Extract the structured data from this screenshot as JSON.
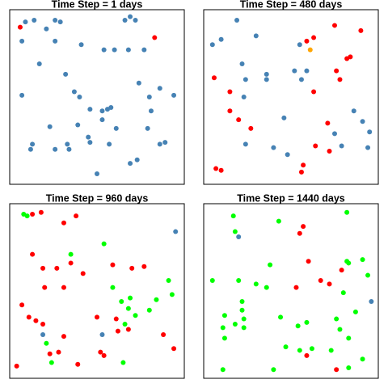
{
  "chart_data": [
    {
      "type": "scatter",
      "title": "Time Step = 1 days",
      "xlim": [
        0,
        100
      ],
      "ylim": [
        0,
        100
      ],
      "series": [
        {
          "color": "#4682b4",
          "x": [
            9,
            14,
            21,
            26,
            29,
            7,
            26,
            41,
            54,
            60,
            68,
            77,
            69,
            66,
            72,
            17,
            32,
            7,
            37,
            40,
            74,
            86,
            94,
            80,
            46,
            53,
            56,
            58,
            53,
            81,
            39,
            61,
            23,
            79,
            45,
            89,
            13,
            33,
            46,
            57,
            86,
            12,
            26,
            34,
            69,
            73,
            50
          ],
          "values": [
            93,
            94,
            89,
            94,
            93,
            82,
            82,
            80,
            77,
            77,
            77,
            77,
            96,
            94,
            94,
            69,
            63,
            51,
            53,
            50,
            58,
            55,
            51,
            50,
            43,
            42,
            43,
            44,
            37,
            42,
            34,
            32,
            33,
            32,
            27,
            24,
            23,
            23,
            24,
            23,
            23,
            20,
            20,
            20,
            12,
            14,
            6
          ]
        },
        {
          "color": "#ff0000",
          "x": [
            6,
            83
          ],
          "values": [
            90,
            84
          ]
        }
      ]
    },
    {
      "type": "scatter",
      "title": "Time Step = 480 days",
      "xlim": [
        0,
        100
      ],
      "ylim": [
        0,
        100
      ],
      "series": [
        {
          "color": "#4682b4",
          "x": [
            19,
            30,
            5,
            10,
            55,
            22,
            24,
            36,
            36,
            52,
            56,
            59,
            23,
            46,
            86,
            91,
            95,
            75,
            24,
            40,
            48,
            79,
            94
          ],
          "values": [
            94,
            85,
            80,
            83,
            80,
            69,
            60,
            63,
            60,
            65,
            60,
            65,
            50,
            38,
            42,
            36,
            30,
            29,
            23,
            21,
            17,
            22,
            21
          ]
        },
        {
          "color": "#ff0000",
          "x": [
            75,
            90,
            59,
            63,
            6,
            15,
            15,
            20,
            27,
            63,
            76,
            78,
            82,
            84,
            71,
            64,
            72,
            57,
            56,
            7,
            10
          ],
          "values": [
            91,
            88,
            82,
            84,
            61,
            53,
            42,
            37,
            32,
            53,
            65,
            60,
            72,
            73,
            35,
            22,
            19,
            11,
            7,
            9,
            8
          ]
        },
        {
          "color": "#ffa500",
          "x": [
            61
          ],
          "values": [
            77
          ]
        }
      ]
    },
    {
      "type": "scatter",
      "title": "Time Step = 960 days",
      "xlim": [
        0,
        100
      ],
      "ylim": [
        0,
        100
      ],
      "series": [
        {
          "color": "#00ff00",
          "x": [
            8,
            10,
            54,
            35,
            59,
            91,
            93,
            64,
            69,
            68,
            80,
            84,
            72,
            66,
            21,
            24,
            65
          ],
          "values": [
            94,
            93,
            77,
            71,
            52,
            56,
            48,
            44,
            46,
            40,
            39,
            45,
            36,
            31,
            20,
            9,
            9
          ]
        },
        {
          "color": "#ff0000",
          "x": [
            13,
            18,
            31,
            38,
            13,
            27,
            19,
            35,
            42,
            59,
            70,
            77,
            20,
            31,
            7,
            11,
            15,
            19,
            61,
            62,
            68,
            50,
            31,
            88,
            94,
            23,
            28,
            52,
            54,
            39,
            4
          ],
          "values": [
            94,
            95,
            89,
            93,
            71,
            63,
            63,
            66,
            60,
            65,
            63,
            64,
            52,
            52,
            42,
            35,
            33,
            31,
            34,
            27,
            28,
            35,
            24,
            25,
            17,
            14,
            15,
            15,
            13,
            8,
            7
          ]
        },
        {
          "color": "#4682b4",
          "x": [
            95,
            19,
            53
          ],
          "values": [
            84,
            25,
            25
          ]
        }
      ]
    },
    {
      "type": "scatter",
      "title": "Time Step = 1440 days",
      "xlim": [
        0,
        100
      ],
      "ylim": [
        0,
        100
      ],
      "series": [
        {
          "color": "#00ff00",
          "x": [
            17,
            43,
            82,
            18,
            5,
            20,
            30,
            38,
            36,
            22,
            82,
            83,
            91,
            80,
            94,
            87,
            22,
            12,
            23,
            18,
            11,
            23,
            12,
            44,
            54,
            59,
            76,
            78,
            47,
            55,
            62,
            73,
            83,
            91,
            11,
            40,
            83
          ],
          "values": [
            93,
            90,
            95,
            84,
            56,
            56,
            54,
            65,
            52,
            44,
            67,
            66,
            68,
            49,
            59,
            38,
            39,
            36,
            34,
            31,
            29,
            29,
            23,
            35,
            30,
            32,
            34,
            28,
            18,
            16,
            17,
            16,
            23,
            11,
            5,
            5,
            6
          ]
        },
        {
          "color": "#ff0000",
          "x": [
            57,
            55,
            60,
            67,
            72,
            53,
            79,
            59,
            76
          ],
          "values": [
            87,
            83,
            67,
            56,
            54,
            52,
            62,
            13,
            5
          ]
        },
        {
          "color": "#4682b4",
          "x": [
            20,
            96
          ],
          "values": [
            81,
            44
          ]
        }
      ]
    }
  ]
}
